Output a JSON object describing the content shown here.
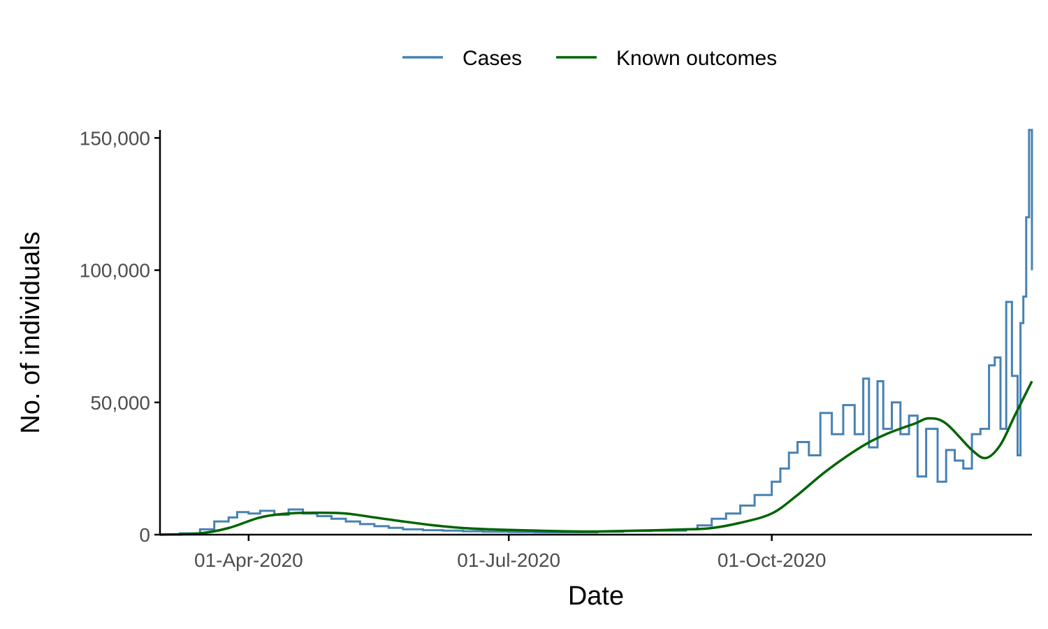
{
  "chart_data": {
    "type": "line",
    "title": "",
    "xlabel": "Date",
    "ylabel": "No. of individuals",
    "x_axis_kind": "date",
    "xlim": [
      "2020-03-01",
      "2020-12-31"
    ],
    "ylim": [
      0,
      150000
    ],
    "x_ticks": [
      {
        "date": "2020-04-01",
        "label": "01-Apr-2020"
      },
      {
        "date": "2020-07-01",
        "label": "01-Jul-2020"
      },
      {
        "date": "2020-10-01",
        "label": "01-Oct-2020"
      }
    ],
    "y_ticks": [
      {
        "value": 0,
        "label": "0"
      },
      {
        "value": 50000,
        "label": "50,000"
      },
      {
        "value": 100000,
        "label": "100,000"
      },
      {
        "value": 150000,
        "label": "150,000"
      }
    ],
    "grid": false,
    "legend_position": "top",
    "series": [
      {
        "name": "Cases",
        "color": "#4682b4",
        "style": "step",
        "x": [
          "2020-03-01",
          "2020-03-08",
          "2020-03-15",
          "2020-03-20",
          "2020-03-25",
          "2020-03-28",
          "2020-04-01",
          "2020-04-05",
          "2020-04-10",
          "2020-04-15",
          "2020-04-20",
          "2020-04-25",
          "2020-04-30",
          "2020-05-05",
          "2020-05-10",
          "2020-05-15",
          "2020-05-20",
          "2020-05-25",
          "2020-06-01",
          "2020-06-08",
          "2020-06-15",
          "2020-06-22",
          "2020-07-01",
          "2020-07-10",
          "2020-07-20",
          "2020-08-01",
          "2020-08-10",
          "2020-08-20",
          "2020-09-01",
          "2020-09-05",
          "2020-09-10",
          "2020-09-15",
          "2020-09-20",
          "2020-09-25",
          "2020-10-01",
          "2020-10-04",
          "2020-10-07",
          "2020-10-10",
          "2020-10-14",
          "2020-10-18",
          "2020-10-22",
          "2020-10-26",
          "2020-10-30",
          "2020-11-02",
          "2020-11-04",
          "2020-11-07",
          "2020-11-09",
          "2020-11-12",
          "2020-11-15",
          "2020-11-18",
          "2020-11-21",
          "2020-11-24",
          "2020-11-28",
          "2020-12-01",
          "2020-12-04",
          "2020-12-07",
          "2020-12-10",
          "2020-12-13",
          "2020-12-16",
          "2020-12-18",
          "2020-12-20",
          "2020-12-22",
          "2020-12-24",
          "2020-12-26",
          "2020-12-27",
          "2020-12-28",
          "2020-12-29",
          "2020-12-30",
          "2020-12-31"
        ],
        "y": [
          0,
          500,
          2000,
          5000,
          6500,
          8500,
          8000,
          9000,
          7500,
          9500,
          8000,
          7000,
          6000,
          5000,
          4000,
          3200,
          2600,
          2000,
          1700,
          1500,
          1300,
          1100,
          1000,
          900,
          900,
          1100,
          1400,
          1500,
          2000,
          3500,
          6000,
          8000,
          11000,
          15000,
          20000,
          25000,
          31000,
          35000,
          30000,
          46000,
          38000,
          49000,
          38000,
          59000,
          33000,
          58000,
          40000,
          50000,
          38000,
          45000,
          22000,
          40000,
          20000,
          32000,
          28000,
          25000,
          38000,
          40000,
          64000,
          67000,
          40000,
          88000,
          60000,
          30000,
          80000,
          90000,
          120000,
          153000,
          100000
        ]
      },
      {
        "name": "Known outcomes",
        "color": "#006400",
        "style": "smooth",
        "x": [
          "2020-03-01",
          "2020-03-15",
          "2020-03-25",
          "2020-04-05",
          "2020-04-15",
          "2020-04-25",
          "2020-05-05",
          "2020-05-15",
          "2020-05-25",
          "2020-06-05",
          "2020-06-15",
          "2020-06-25",
          "2020-07-05",
          "2020-07-20",
          "2020-08-01",
          "2020-08-15",
          "2020-09-01",
          "2020-09-10",
          "2020-09-20",
          "2020-10-01",
          "2020-10-10",
          "2020-10-20",
          "2020-11-01",
          "2020-11-10",
          "2020-11-20",
          "2020-11-25",
          "2020-12-01",
          "2020-12-10",
          "2020-12-15",
          "2020-12-20",
          "2020-12-25",
          "2020-12-31"
        ],
        "y": [
          0,
          500,
          2500,
          6500,
          8000,
          8300,
          8000,
          6500,
          5000,
          3500,
          2500,
          2000,
          1700,
          1300,
          1200,
          1500,
          2000,
          2500,
          4500,
          8000,
          15000,
          24000,
          33000,
          38000,
          42000,
          44000,
          42000,
          32000,
          29000,
          34000,
          45000,
          58000
        ]
      }
    ]
  }
}
